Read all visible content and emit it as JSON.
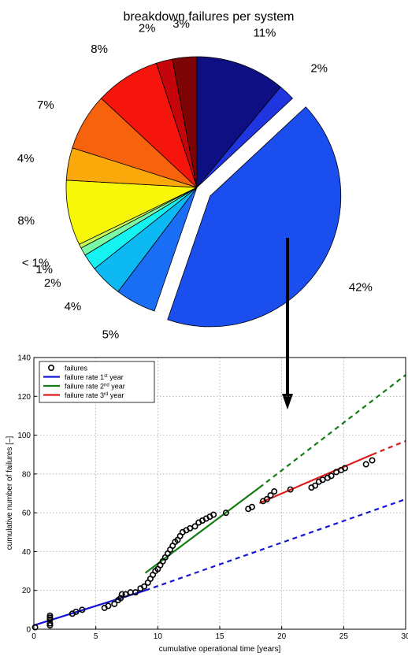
{
  "chart_data": [
    {
      "type": "pie",
      "title": "breakdown failures per system",
      "slices": [
        {
          "label": "11%",
          "value": 11,
          "color": "#0d0f82",
          "explode": false
        },
        {
          "label": "2%",
          "value": 2,
          "color": "#1f35df",
          "explode": false
        },
        {
          "label": "42%",
          "value": 42,
          "color": "#1a4eef",
          "explode": true
        },
        {
          "label": "5%",
          "value": 5,
          "color": "#1a6ef5",
          "explode": false
        },
        {
          "label": "4%",
          "value": 4,
          "color": "#0cb9f3",
          "explode": false
        },
        {
          "label": "2%",
          "value": 2,
          "color": "#14f2f2",
          "explode": false
        },
        {
          "label": "1%",
          "value": 1,
          "color": "#7bfaa6",
          "explode": false
        },
        {
          "label": "< 1%",
          "value": 0.5,
          "color": "#c7fb55",
          "explode": false
        },
        {
          "label": "8%",
          "value": 8,
          "color": "#f7f70a",
          "explode": false
        },
        {
          "label": "4%",
          "value": 4,
          "color": "#fba80a",
          "explode": false
        },
        {
          "label": "7%",
          "value": 7,
          "color": "#f7620c",
          "explode": false
        },
        {
          "label": "8%",
          "value": 8,
          "color": "#f5150c",
          "explode": false
        },
        {
          "label": "2%",
          "value": 2,
          "color": "#c5050b",
          "explode": false
        },
        {
          "label": "3%",
          "value": 3,
          "color": "#7d0404",
          "explode": false
        }
      ]
    },
    {
      "type": "scatter",
      "xlabel": "cumulative operational time [years]",
      "ylabel": "cumulative number of failures [–]",
      "xlim": [
        0,
        30
      ],
      "ylim": [
        0,
        140
      ],
      "xticks": [
        "0",
        "5",
        "10",
        "15",
        "20",
        "25",
        "30"
      ],
      "yticks": [
        "0",
        "20",
        "40",
        "60",
        "80",
        "100",
        "120",
        "140"
      ],
      "grid": true,
      "legend_position": "top-left",
      "legend": [
        {
          "label": "failures",
          "kind": "marker",
          "color": "#000000"
        },
        {
          "label": "failure rate 1",
          "sup": "st",
          "suffix": " year",
          "kind": "line",
          "color": "#1515d6"
        },
        {
          "label": "failure rate 2",
          "sup": "nd",
          "suffix": " year",
          "kind": "line",
          "color": "#137d13"
        },
        {
          "label": "failure rate 3",
          "sup": "rd",
          "suffix": " year",
          "kind": "line",
          "color": "#e01b1b"
        }
      ],
      "series": [
        {
          "name": "failures",
          "kind": "points",
          "color": "#000000",
          "x": [
            0.1,
            1.3,
            1.3,
            1.3,
            1.3,
            1.3,
            3.1,
            3.4,
            3.9,
            5.7,
            6.0,
            6.5,
            6.8,
            7.0,
            7.1,
            7.4,
            7.8,
            8.2,
            8.6,
            8.9,
            9.2,
            9.4,
            9.6,
            9.8,
            10.0,
            10.2,
            10.4,
            10.6,
            10.8,
            11.0,
            11.2,
            11.4,
            11.6,
            11.8,
            12.0,
            12.3,
            12.6,
            13.0,
            13.3,
            13.6,
            13.9,
            14.2,
            14.5,
            15.5,
            17.3,
            17.6,
            18.5,
            18.8,
            19.1,
            19.4,
            20.7,
            22.4,
            22.7,
            23.0,
            23.3,
            23.7,
            24.0,
            24.4,
            24.8,
            25.1,
            26.8,
            27.3
          ],
          "y": [
            1,
            2,
            3,
            5,
            6,
            7,
            8,
            9,
            10,
            11,
            12,
            13,
            15,
            16,
            18,
            18,
            19,
            19,
            21,
            22,
            24,
            26,
            28,
            30,
            31,
            33,
            35,
            37,
            39,
            41,
            43,
            45,
            46,
            48,
            50,
            51,
            52,
            53,
            55,
            56,
            57,
            58,
            59,
            60,
            62,
            63,
            66,
            67,
            69,
            71,
            72,
            73,
            74,
            76,
            77,
            78,
            79,
            81,
            82,
            83,
            85,
            87
          ]
        },
        {
          "name": "failure rate 1st year",
          "kind": "line",
          "color": "#1515d6",
          "solid": [
            [
              0,
              2
            ],
            [
              9,
              20
            ]
          ],
          "dashed": [
            [
              9,
              20
            ],
            [
              30,
              67
            ]
          ]
        },
        {
          "name": "failure rate 2nd year",
          "kind": "line",
          "color": "#137d13",
          "solid": [
            [
              9,
              29
            ],
            [
              18.2,
              73
            ]
          ],
          "dashed": [
            [
              18.2,
              73
            ],
            [
              30,
              131
            ]
          ]
        },
        {
          "name": "failure rate 3rd year",
          "kind": "line",
          "color": "#e01b1b",
          "solid": [
            [
              18.2,
              65
            ],
            [
              27.3,
              90
            ]
          ],
          "dashed": [
            [
              27.3,
              90
            ],
            [
              30,
              97
            ]
          ]
        }
      ]
    }
  ]
}
